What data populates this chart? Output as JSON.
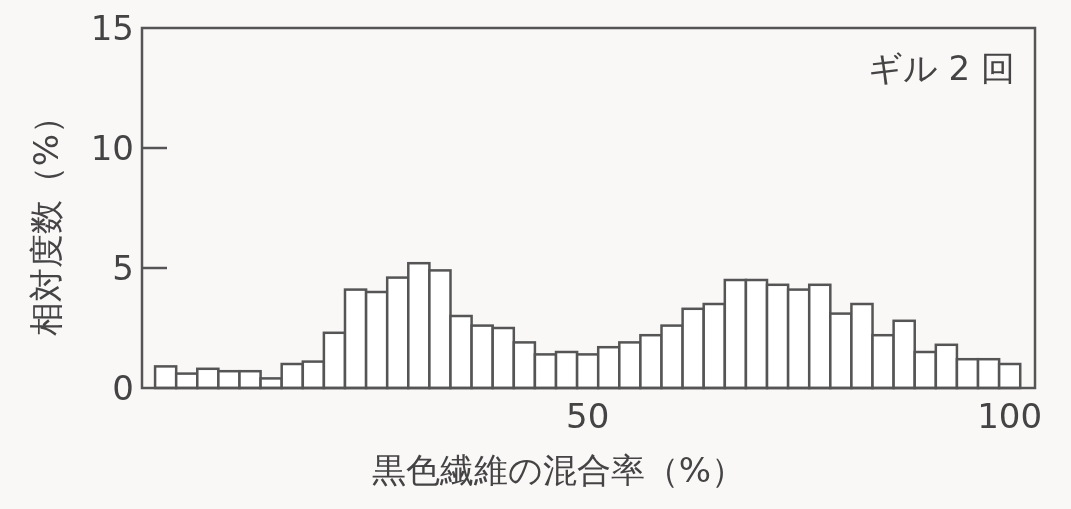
{
  "chart_data": {
    "type": "histogram",
    "xlabel": "黒色繊維の混合率（%）",
    "ylabel": "相対度数（%）",
    "annotations": [
      "ギル 2 回"
    ],
    "bins": [
      -1.25,
      1.25,
      3.75,
      6.25,
      8.75,
      11.25,
      13.75,
      16.25,
      18.75,
      21.25,
      23.75,
      26.25,
      28.75,
      31.25,
      33.75,
      36.25,
      38.75,
      41.25,
      43.75,
      46.25,
      48.75,
      51.25,
      53.75,
      56.25,
      58.75,
      61.25,
      63.75,
      66.25,
      68.75,
      71.25,
      73.75,
      76.25,
      78.75,
      81.25,
      83.75,
      86.25,
      88.75,
      91.25,
      93.75,
      96.25,
      98.75,
      101.25
    ],
    "values": [
      0.9,
      0.6,
      0.8,
      0.7,
      0.7,
      0.4,
      1.0,
      1.1,
      2.3,
      4.1,
      4.0,
      4.6,
      5.2,
      4.9,
      3.0,
      2.6,
      2.5,
      1.9,
      1.4,
      1.5,
      1.4,
      1.7,
      1.9,
      2.2,
      2.6,
      3.3,
      3.5,
      4.5,
      4.5,
      4.3,
      4.1,
      4.3,
      3.1,
      3.5,
      2.2,
      2.8,
      1.5,
      1.8,
      1.2,
      1.2,
      1.0
    ],
    "color": "#ffffff",
    "xlim": [
      -2.8,
      103
    ],
    "xticks": [
      50,
      100
    ],
    "ylim": [
      0,
      15
    ],
    "yticks": [
      0,
      5,
      10,
      15
    ],
    "grid": false
  }
}
